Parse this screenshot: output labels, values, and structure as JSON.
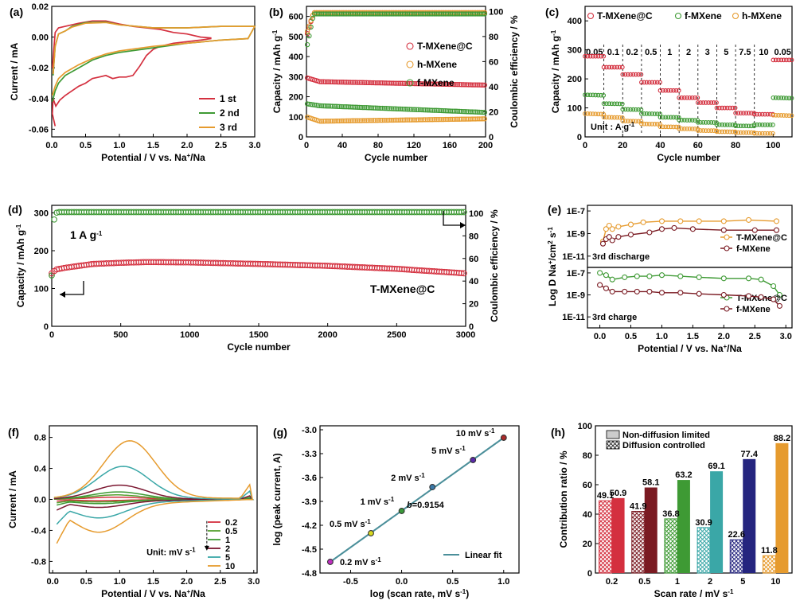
{
  "colors": {
    "red": "#d4303f",
    "orange": "#e69b2e",
    "green": "#3e9a34",
    "maroon": "#7b1630",
    "teal": "#3aa7a7",
    "darkred": "#7a1a22",
    "navy": "#25257f",
    "lgreen": "#55a030",
    "hgreen": "#3b8a3b"
  },
  "chart_data": [
    {
      "id": "a",
      "panel_label": "(a)",
      "type": "line",
      "xlabel": "Potential / V vs. Na",
      "xlabel_sup": "+",
      "xlabel_tail": "/Na",
      "ylabel": "Current / mA",
      "xlim": [
        0,
        3.0
      ],
      "ylim": [
        -0.065,
        0.02
      ],
      "xticks": [
        "0.0",
        "0.5",
        "1.0",
        "1.5",
        "2.0",
        "2.5",
        "3.0"
      ],
      "yticks": [
        "-0.06",
        "-0.04",
        "-0.02",
        "0.00",
        "0.02"
      ],
      "legend_position": "lower-right",
      "series": [
        {
          "name": "1 st",
          "color": "#d4303f",
          "x": [
            0.05,
            0.01,
            0.02,
            0.06,
            0.12,
            0.2,
            0.3,
            0.4,
            0.5,
            0.6,
            0.7,
            0.8,
            0.9,
            1.0,
            1.1,
            1.2,
            1.3,
            1.4,
            1.5,
            1.6,
            1.8,
            2.0,
            2.2,
            2.35,
            2.35,
            2.2,
            2.0,
            1.8,
            1.6,
            1.4,
            1.2,
            1.0,
            0.8,
            0.6,
            0.4,
            0.2,
            0.1,
            0.05,
            0.01
          ],
          "y": [
            -0.058,
            -0.05,
            -0.04,
            -0.045,
            -0.041,
            -0.038,
            -0.035,
            -0.032,
            -0.03,
            -0.027,
            -0.026,
            -0.025,
            -0.027,
            -0.026,
            -0.026,
            -0.025,
            -0.019,
            -0.012,
            -0.008,
            -0.006,
            -0.004,
            -0.003,
            -0.002,
            -0.001,
            -0.0005,
            0.0,
            0.002,
            0.003,
            0.005,
            0.006,
            0.007,
            0.0085,
            0.0105,
            0.0105,
            0.009,
            0.007,
            0.006,
            0.003,
            -0.02
          ]
        },
        {
          "name": "2 nd",
          "color": "#3e9a34",
          "x": [
            0.01,
            0.05,
            0.1,
            0.2,
            0.4,
            0.6,
            0.8,
            1.0,
            1.5,
            2.0,
            2.5,
            2.9,
            3.0,
            2.5,
            2.0,
            1.5,
            1.0,
            0.8,
            0.5,
            0.3,
            0.2,
            0.1,
            0.05,
            0.02
          ],
          "y": [
            -0.042,
            -0.035,
            -0.03,
            -0.025,
            -0.02,
            -0.015,
            -0.012,
            -0.01,
            -0.007,
            -0.004,
            -0.002,
            -0.001,
            0.007,
            0.007,
            0.006,
            0.006,
            0.008,
            0.0098,
            0.0095,
            0.007,
            0.004,
            0.002,
            -0.006,
            -0.025
          ]
        },
        {
          "name": "3 rd",
          "color": "#e69b2e",
          "x": [
            0.01,
            0.05,
            0.1,
            0.2,
            0.4,
            0.6,
            0.8,
            1.0,
            1.5,
            2.0,
            2.5,
            2.9,
            3.0,
            2.5,
            2.0,
            1.5,
            1.0,
            0.8,
            0.5,
            0.3,
            0.2,
            0.1,
            0.05,
            0.02
          ],
          "y": [
            -0.038,
            -0.032,
            -0.027,
            -0.023,
            -0.018,
            -0.014,
            -0.011,
            -0.009,
            -0.006,
            -0.004,
            -0.002,
            -0.001,
            0.007,
            0.007,
            0.006,
            0.006,
            0.008,
            0.0095,
            0.009,
            0.0065,
            0.004,
            0.002,
            -0.006,
            -0.024
          ]
        }
      ]
    },
    {
      "id": "b",
      "panel_label": "(b)",
      "type": "scatter",
      "xlabel": "Cycle number",
      "ylabel": "Capacity / mAh g",
      "ylabel_sup": "-1",
      "y2label": "Coulombic efficiency / %",
      "xlim": [
        0,
        200
      ],
      "ylim": [
        0,
        650
      ],
      "y2lim": [
        0,
        104
      ],
      "xticks": [
        "0",
        "40",
        "80",
        "120",
        "160",
        "200"
      ],
      "yticks": [
        "0",
        "100",
        "200",
        "300",
        "400",
        "500",
        "600"
      ],
      "y2ticks": [
        "0",
        "20",
        "40",
        "60",
        "80",
        "100"
      ],
      "legend_position": "center-right",
      "series": [
        {
          "name": "T-MXene@C",
          "color": "#d4303f",
          "capacity_start": 295,
          "capacity_plateau": 275,
          "capacity_end": 258,
          "efficiency_start": 80,
          "efficiency_plateau": 99
        },
        {
          "name": "h-MXene",
          "color": "#e69b2e",
          "capacity_start": 100,
          "capacity_plateau": 78,
          "capacity_end": 90,
          "efficiency_start": 82,
          "efficiency_plateau": 99
        },
        {
          "name": "f-MXene",
          "color": "#3e9a34",
          "capacity_start": 165,
          "capacity_plateau": 155,
          "capacity_end": 122,
          "efficiency_start": 70,
          "efficiency_plateau": 98
        }
      ]
    },
    {
      "id": "c",
      "panel_label": "(c)",
      "type": "scatter",
      "xlabel": "Cycle number",
      "ylabel": "Capacity / mAh g",
      "ylabel_sup": "-1",
      "xlim": [
        0,
        110
      ],
      "ylim": [
        0,
        450
      ],
      "xticks": [
        "0",
        "20",
        "40",
        "60",
        "80",
        "100"
      ],
      "yticks": [
        "0",
        "100",
        "200",
        "300",
        "400"
      ],
      "legend_position": "top",
      "rates": [
        "0.05",
        "0.1",
        "0.2",
        "0.5",
        "1",
        "2",
        "3",
        "5",
        "7.5",
        "10",
        "0.05"
      ],
      "unit_label": "Unit : A g",
      "unit_sup": "-1",
      "series": [
        {
          "name": "T-MXene@C",
          "color": "#d4303f",
          "values": [
            278,
            240,
            215,
            188,
            160,
            135,
            118,
            100,
            82,
            78,
            265
          ]
        },
        {
          "name": "f-MXene",
          "color": "#3e9a34",
          "values": [
            145,
            115,
            95,
            80,
            68,
            58,
            50,
            42,
            38,
            42,
            135
          ]
        },
        {
          "name": "h-MXene",
          "color": "#e69b2e",
          "values": [
            80,
            68,
            55,
            45,
            35,
            28,
            22,
            18,
            15,
            12,
            75
          ]
        }
      ]
    },
    {
      "id": "d",
      "panel_label": "(d)",
      "type": "scatter",
      "xlabel": "Cycle number",
      "ylabel": "Capacity / mAh g",
      "ylabel_sup": "-1",
      "y2label": "Coulombic efficiency / %",
      "xlim": [
        0,
        3000
      ],
      "ylim": [
        0,
        320
      ],
      "y2lim": [
        0,
        107
      ],
      "xticks": [
        "0",
        "500",
        "1000",
        "1500",
        "2000",
        "2500",
        "3000"
      ],
      "yticks": [
        "0",
        "100",
        "200",
        "300"
      ],
      "y2ticks": [
        "0",
        "20",
        "40",
        "60",
        "80",
        "100"
      ],
      "annotation": "1 A g",
      "annotation_sup": "-1",
      "series_label": "T-MXene@C",
      "series": [
        {
          "name": "Capacity",
          "color": "#d4303f",
          "x": [
            0,
            30,
            100,
            300,
            500,
            700,
            1000,
            1500,
            2000,
            2500,
            3000
          ],
          "y": [
            140,
            150,
            155,
            165,
            168,
            170,
            169,
            165,
            160,
            152,
            140
          ]
        },
        {
          "name": "Coulombic efficiency",
          "color": "#3e9a34",
          "x": [
            0,
            20,
            50,
            3000
          ],
          "y": [
            45,
            100,
            101,
            101
          ]
        }
      ]
    },
    {
      "id": "e",
      "panel_label": "(e)",
      "type": "line",
      "xlabel": "Potential / V vs. Na",
      "xlabel_sup": "+",
      "xlabel_tail": "/Na",
      "ylabel": "Log D Na",
      "ylabel_sup": "+",
      "ylabel_tail": "/cm",
      "ylabel_sup2": "2",
      "ylabel_tail2": " s",
      "ylabel_sup3": "-1",
      "xlim": [
        -0.2,
        3.1
      ],
      "log_y": true,
      "ylim_exp": [
        -12,
        -6.5
      ],
      "xticks": [
        "0.0",
        "0.5",
        "1.0",
        "1.5",
        "2.0",
        "2.5",
        "3.0"
      ],
      "yticks": [
        "1E-11",
        "1E-9",
        "1E-7"
      ],
      "subplots": [
        {
          "label": "3rd discharge",
          "series": [
            {
              "name": "T-MXene@C",
              "color": "#e69b2e",
              "x": [
                0.05,
                0.1,
                0.15,
                0.2,
                0.3,
                0.5,
                0.7,
                1.0,
                1.3,
                1.6,
                2.0,
                2.4,
                2.85
              ],
              "log_y": [
                -9.7,
                -8.6,
                -8.3,
                -8.6,
                -8.4,
                -8.2,
                -8.0,
                -7.9,
                -7.9,
                -7.9,
                -7.9,
                -7.8,
                -7.9
              ]
            },
            {
              "name": "f-MXene",
              "color": "#7a1a22",
              "x": [
                0.05,
                0.1,
                0.15,
                0.2,
                0.3,
                0.5,
                0.8,
                1.0,
                1.2,
                1.5,
                2.0,
                2.5,
                2.85
              ],
              "log_y": [
                -9.9,
                -9.5,
                -9.3,
                -9.6,
                -9.3,
                -9.1,
                -8.9,
                -8.6,
                -8.5,
                -8.6,
                -8.7,
                -8.7,
                -8.7
              ]
            }
          ]
        },
        {
          "label": "3rd charge",
          "series": [
            {
              "name": "T-MXene@C",
              "color": "#3e9a34",
              "x": [
                0.0,
                0.1,
                0.2,
                0.4,
                0.6,
                0.8,
                1.0,
                1.3,
                1.6,
                2.0,
                2.4,
                2.6,
                2.8,
                2.9
              ],
              "log_y": [
                -7.0,
                -7.2,
                -7.6,
                -7.4,
                -7.3,
                -7.3,
                -7.2,
                -7.3,
                -7.4,
                -7.5,
                -7.5,
                -7.6,
                -8.2,
                -9.0
              ]
            },
            {
              "name": "f-MXene",
              "color": "#7a1a22",
              "x": [
                0.0,
                0.1,
                0.2,
                0.4,
                0.6,
                0.8,
                1.0,
                1.3,
                1.6,
                2.0,
                2.4,
                2.6,
                2.8,
                2.9
              ],
              "log_y": [
                -8.1,
                -8.4,
                -8.7,
                -8.7,
                -8.7,
                -8.7,
                -8.8,
                -8.8,
                -8.9,
                -9.0,
                -9.1,
                -9.2,
                -9.4,
                -10.0
              ]
            }
          ]
        }
      ]
    },
    {
      "id": "f",
      "panel_label": "(f)",
      "type": "line",
      "xlabel": "Potential / V vs. Na",
      "xlabel_sup": "+",
      "xlabel_tail": "/Na",
      "ylabel": "Current / mA",
      "xlim": [
        -0.05,
        3.05
      ],
      "ylim": [
        -0.95,
        0.95
      ],
      "xticks": [
        "0.0",
        "0.5",
        "1.0",
        "1.5",
        "2.0",
        "2.5",
        "3.0"
      ],
      "yticks": [
        "-0.8",
        "-0.4",
        "0.0",
        "0.4",
        "0.8"
      ],
      "unit_label": "Unit: mV s",
      "unit_sup": "-1",
      "legend_position": "lower-right",
      "series": [
        {
          "name": "0.2",
          "color": "#d4303f",
          "amp": 0.03,
          "peak": 0.95
        },
        {
          "name": "0.5",
          "color": "#55a030",
          "amp": 0.06,
          "peak": 0.95
        },
        {
          "name": "1",
          "color": "#3e9a34",
          "amp": 0.1,
          "peak": 0.98
        },
        {
          "name": "2",
          "color": "#7b1630",
          "amp": 0.19,
          "peak": 1.0
        },
        {
          "name": "5",
          "color": "#3aa7a7",
          "amp": 0.44,
          "peak": 1.05
        },
        {
          "name": "10",
          "color": "#e69b2e",
          "amp": 0.78,
          "peak": 1.15
        }
      ]
    },
    {
      "id": "g",
      "panel_label": "(g)",
      "type": "scatter",
      "xlabel": "log (scan rate, mV s",
      "xlabel_sup": "-1",
      "xlabel_tail": ")",
      "ylabel": "log (peak current, A)",
      "xlim": [
        -0.8,
        1.15
      ],
      "ylim": [
        -4.8,
        -2.95
      ],
      "xticks": [
        "-0.5",
        "0.0",
        "0.5",
        "1.0"
      ],
      "yticks": [
        "-4.8",
        "-4.5",
        "-4.2",
        "-3.9",
        "-3.6",
        "-3.3",
        "-3.0"
      ],
      "fit_label": "Linear fit",
      "slope_label": "b",
      "slope_value": "=0.9154",
      "points": [
        {
          "label": "0.2 mV s",
          "sup": "-1",
          "x": -0.699,
          "y": -4.66,
          "color": "#c02fc0"
        },
        {
          "label": "0.5 mV s",
          "sup": "-1",
          "x": -0.301,
          "y": -4.3,
          "color": "#d8d820"
        },
        {
          "label": "1 mV s",
          "sup": "-1",
          "x": 0.0,
          "y": -4.02,
          "color": "#3a9a3a"
        },
        {
          "label": "2 mV s",
          "sup": "-1",
          "x": 0.301,
          "y": -3.72,
          "color": "#3a7aaa"
        },
        {
          "label": "5 mV s",
          "sup": "-1",
          "x": 0.699,
          "y": -3.38,
          "color": "#5a2aaa"
        },
        {
          "label": "10 mV s",
          "sup": "-1",
          "x": 1.0,
          "y": -3.1,
          "color": "#aa2a2a"
        }
      ]
    },
    {
      "id": "h",
      "panel_label": "(h)",
      "type": "bar",
      "xlabel": "Scan rate / mV s",
      "xlabel_sup": "-1",
      "ylabel": "Contribution ratio / %",
      "ylim": [
        0,
        100
      ],
      "yticks": [
        "0",
        "20",
        "40",
        "60",
        "80",
        "100"
      ],
      "categories": [
        "0.2",
        "0.5",
        "1",
        "2",
        "5",
        "10"
      ],
      "legend": [
        "Non-diffusion limited",
        "Diffusion controlled"
      ],
      "colors": [
        "#d4303f",
        "#7a1a22",
        "#3e9a34",
        "#3aa7a7",
        "#25257f",
        "#e69b2e"
      ],
      "series": [
        {
          "name": "Diffusion controlled",
          "values": [
            49.1,
            41.9,
            36.8,
            30.9,
            22.6,
            11.8
          ]
        },
        {
          "name": "Non-diffusion limited",
          "values": [
            50.9,
            58.1,
            63.2,
            69.1,
            77.4,
            88.2
          ]
        }
      ]
    }
  ]
}
